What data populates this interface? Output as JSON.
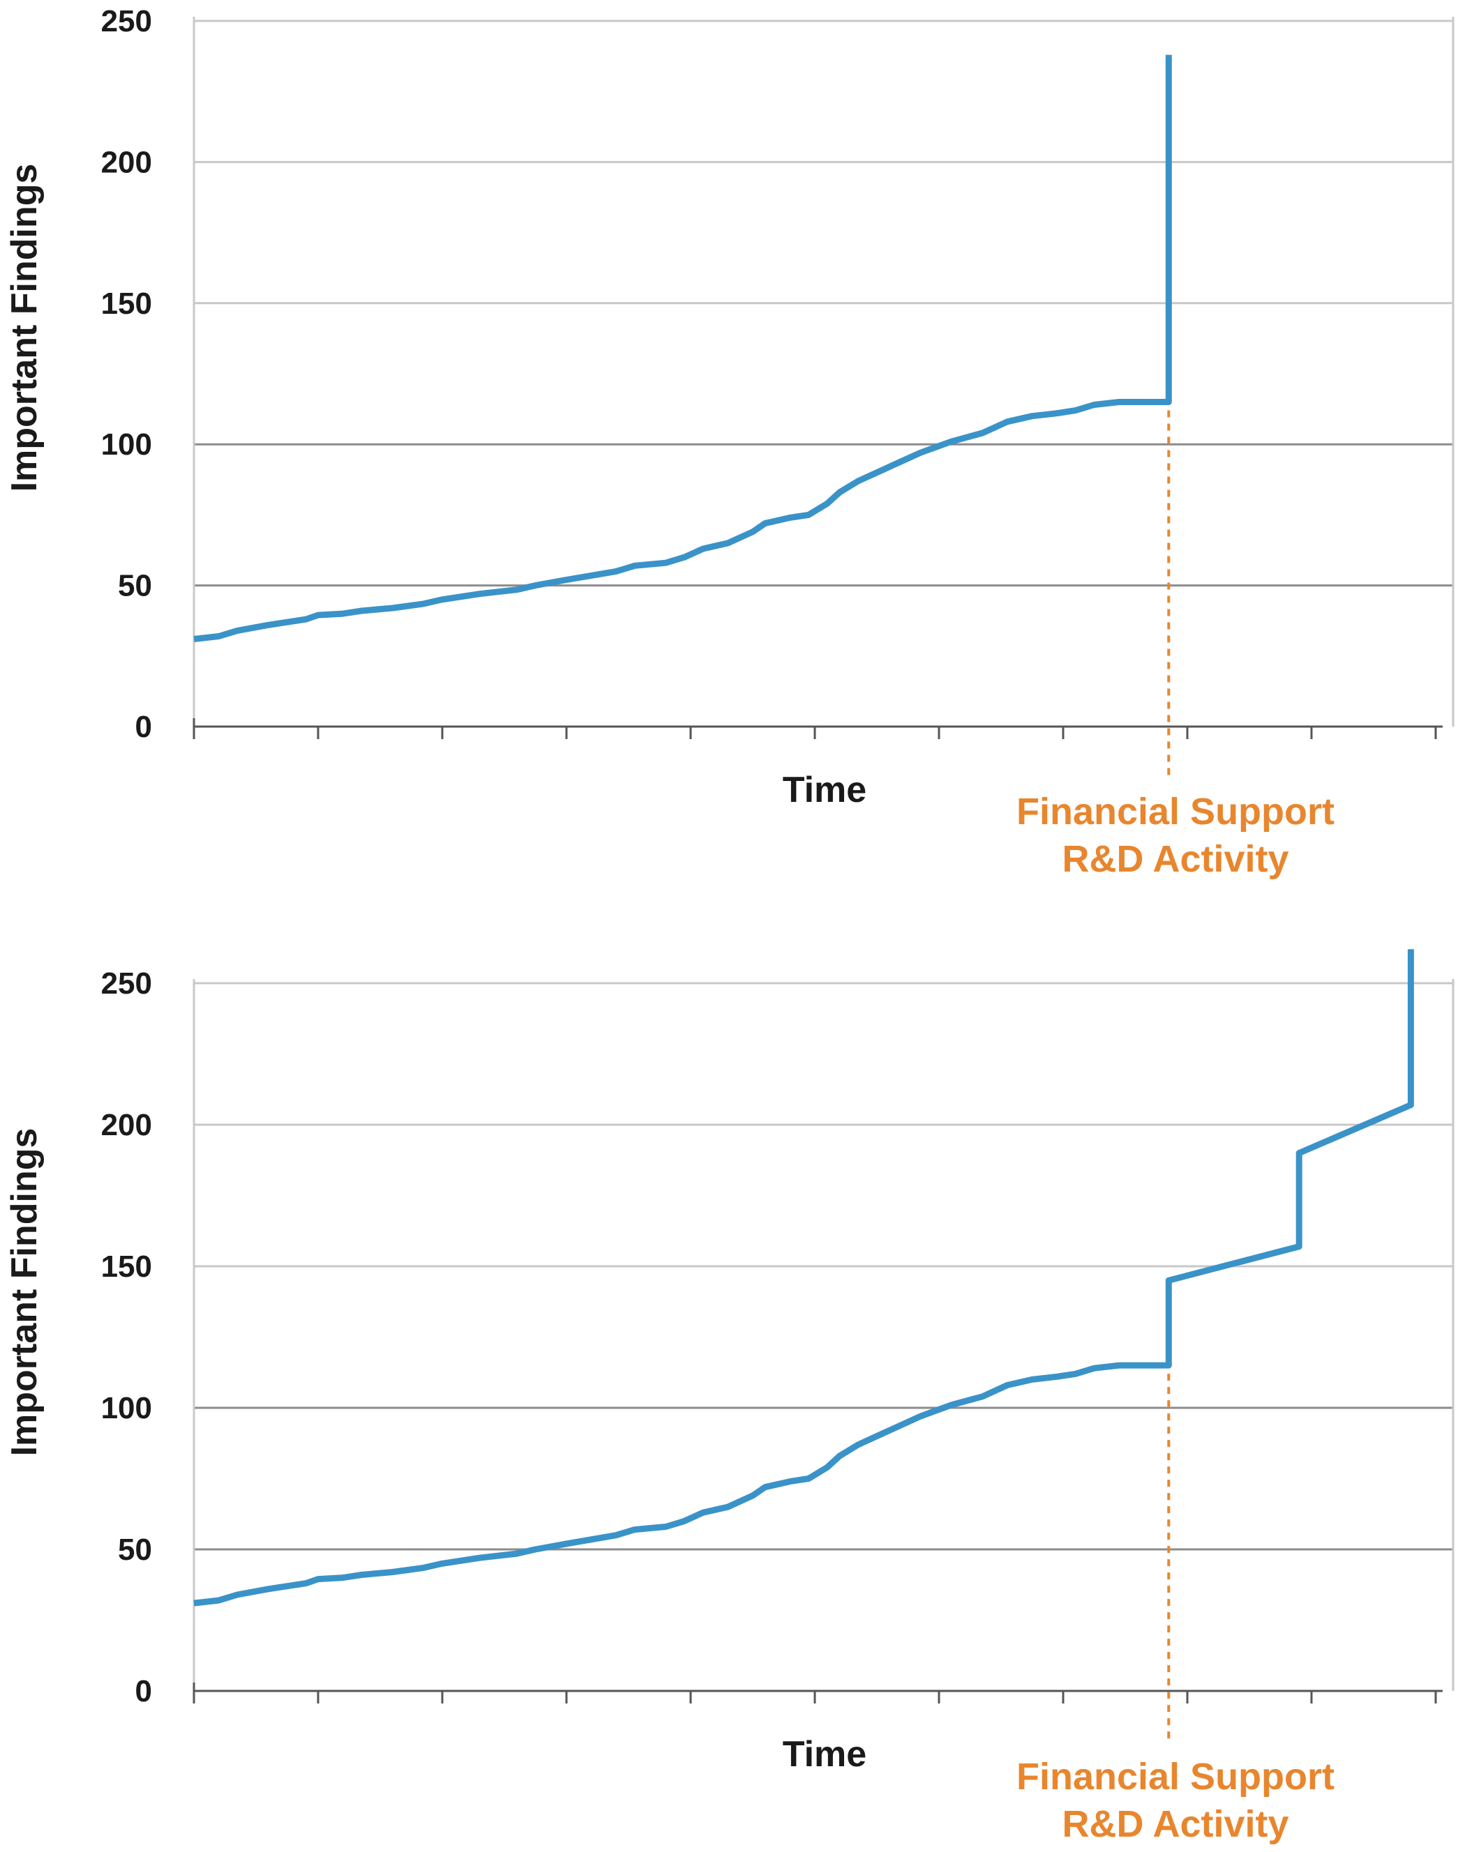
{
  "colors": {
    "series": "#3a93c8",
    "annotation": "#e8862e",
    "grid_major": "#8c8c8c",
    "grid_minor": "#c8c8c8",
    "axis": "#555555",
    "text": "#1a1a1a"
  },
  "chart_data": [
    {
      "type": "line",
      "ylabel": "Important Findings",
      "xlabel": "Time",
      "ylim": [
        0,
        250
      ],
      "yticks": [
        0,
        50,
        100,
        150,
        200,
        250
      ],
      "grid": true,
      "x_tick_count": 11,
      "annotation": {
        "lines": [
          "Financial Support",
          "R&D Activity"
        ],
        "x": 7.85
      },
      "series": [
        {
          "x": [
            0,
            0.2,
            0.35,
            0.6,
            0.9,
            1.0,
            1.2,
            1.35,
            1.6,
            1.85,
            2.0,
            2.3,
            2.6,
            2.75,
            3.0,
            3.4,
            3.55,
            3.8,
            3.95,
            4.1,
            4.3,
            4.5,
            4.6,
            4.8,
            4.95,
            5.1,
            5.2,
            5.35,
            5.55,
            5.75,
            5.85,
            6.1,
            6.35,
            6.55,
            6.75,
            6.95,
            7.1,
            7.25,
            7.45,
            7.6,
            7.85,
            7.85
          ],
          "y": [
            31,
            32,
            34,
            36,
            38,
            39.5,
            40,
            41,
            42,
            43.5,
            45,
            47,
            48.5,
            50,
            52,
            55,
            57,
            58,
            60,
            63,
            65,
            69,
            72,
            74,
            75,
            79,
            83,
            87,
            91,
            95,
            97,
            101,
            104,
            108,
            110,
            111,
            112,
            114,
            115,
            115,
            115,
            238
          ]
        }
      ]
    },
    {
      "type": "line",
      "ylabel": "Important Findings",
      "xlabel": "Time",
      "ylim": [
        0,
        250
      ],
      "yticks": [
        0,
        50,
        100,
        150,
        200,
        250
      ],
      "grid": true,
      "x_tick_count": 11,
      "annotation": {
        "lines": [
          "Financial Support",
          "R&D Activity"
        ],
        "x": 7.85
      },
      "series": [
        {
          "x": [
            0,
            0.2,
            0.35,
            0.6,
            0.9,
            1.0,
            1.2,
            1.35,
            1.6,
            1.85,
            2.0,
            2.3,
            2.6,
            2.75,
            3.0,
            3.4,
            3.55,
            3.8,
            3.95,
            4.1,
            4.3,
            4.5,
            4.6,
            4.8,
            4.95,
            5.1,
            5.2,
            5.35,
            5.55,
            5.75,
            5.85,
            6.1,
            6.35,
            6.55,
            6.75,
            6.95,
            7.1,
            7.25,
            7.45,
            7.6,
            7.85,
            7.85,
            8.9,
            8.9,
            9.8,
            9.8
          ],
          "y": [
            31,
            32,
            34,
            36,
            38,
            39.5,
            40,
            41,
            42,
            43.5,
            45,
            47,
            48.5,
            50,
            52,
            55,
            57,
            58,
            60,
            63,
            65,
            69,
            72,
            74,
            75,
            79,
            83,
            87,
            91,
            95,
            97,
            101,
            104,
            108,
            110,
            111,
            112,
            114,
            115,
            115,
            115,
            145,
            157,
            190,
            207,
            262
          ]
        }
      ]
    }
  ]
}
